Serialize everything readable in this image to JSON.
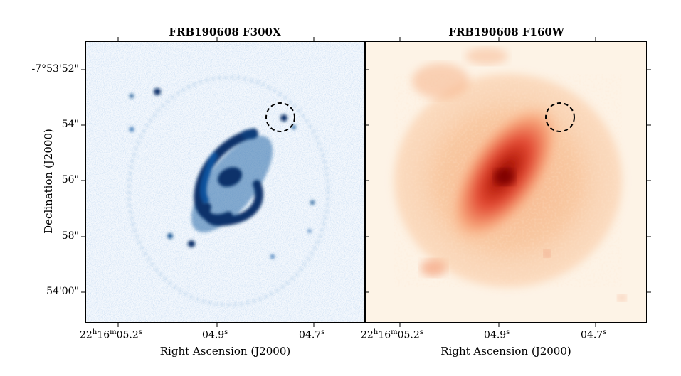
{
  "panels": [
    {
      "title": "FRB190608 F300X",
      "colormap": "Blues",
      "background_color": "#f4f8fd",
      "accent_color": "#08306b"
    },
    {
      "title": "FRB190608 F160W",
      "colormap": "OrRd",
      "background_color": "#fdf3e6",
      "accent_color": "#7f0000"
    }
  ],
  "axes": {
    "xlabel": "Right Ascension (J2000)",
    "ylabel": "Declination (J2000)",
    "x_ticks": [
      {
        "h": "22",
        "m": "16",
        "s": "05.2",
        "format": "full"
      },
      {
        "s": "04.9",
        "format": "sec"
      },
      {
        "s": "04.7",
        "format": "sec"
      }
    ],
    "y_ticks": [
      "-7°53'52\"",
      "54\"",
      "56\"",
      "58\"",
      "54'00\""
    ]
  },
  "marker": {
    "style": "dashed circle",
    "color": "#000000"
  }
}
